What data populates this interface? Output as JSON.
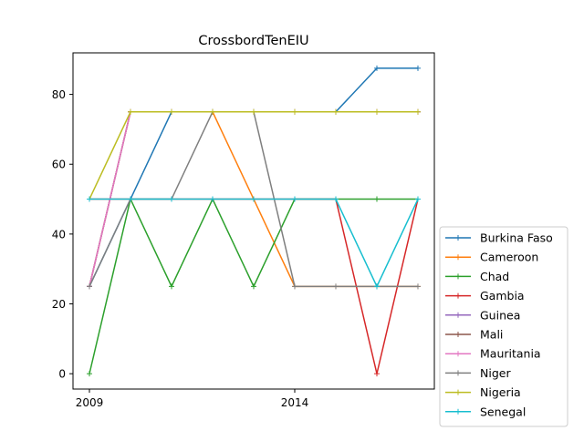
{
  "chart_data": {
    "type": "line",
    "title": "CrossbordTenEIU",
    "xlabel": "",
    "ylabel": "",
    "x": [
      2009,
      2010,
      2011,
      2012,
      2013,
      2014,
      2015,
      2016,
      2017
    ],
    "xticks": [
      "2009",
      "2014"
    ],
    "yticks": [
      "0",
      "20",
      "40",
      "60",
      "80"
    ],
    "xlim": [
      2008.6,
      2017.4
    ],
    "ylim": [
      -4.4,
      91.9
    ],
    "grid": false,
    "legend_position": "lower-right-outside",
    "series": [
      {
        "name": "Burkina Faso",
        "color": "#1f77b4",
        "values": [
          25,
          50,
          75,
          75,
          75,
          75,
          75,
          87.5,
          87.5
        ]
      },
      {
        "name": "Cameroon",
        "color": "#ff7f0e",
        "values": [
          25,
          75,
          75,
          75,
          50,
          25,
          25,
          25,
          25
        ]
      },
      {
        "name": "Chad",
        "color": "#2ca02c",
        "values": [
          0,
          50,
          25,
          50,
          25,
          50,
          50,
          50,
          50
        ]
      },
      {
        "name": "Gambia",
        "color": "#d62728",
        "values": [
          50,
          50,
          50,
          50,
          50,
          50,
          50,
          0,
          50
        ]
      },
      {
        "name": "Guinea",
        "color": "#9467bd",
        "values": [
          25,
          75,
          75,
          75,
          75,
          75,
          75,
          75,
          75
        ]
      },
      {
        "name": "Mali",
        "color": "#8c564b",
        "values": [
          25,
          75,
          75,
          75,
          75,
          75,
          75,
          75,
          75
        ]
      },
      {
        "name": "Mauritania",
        "color": "#e377c2",
        "values": [
          25,
          75,
          75,
          75,
          75,
          75,
          75,
          75,
          75
        ]
      },
      {
        "name": "Niger",
        "color": "#7f7f7f",
        "values": [
          25,
          50,
          50,
          75,
          75,
          25,
          25,
          25,
          25
        ]
      },
      {
        "name": "Nigeria",
        "color": "#bcbd22",
        "values": [
          50,
          75,
          75,
          75,
          75,
          75,
          75,
          75,
          75
        ]
      },
      {
        "name": "Senegal",
        "color": "#17becf",
        "values": [
          50,
          50,
          50,
          50,
          50,
          50,
          50,
          25,
          50
        ]
      }
    ]
  }
}
